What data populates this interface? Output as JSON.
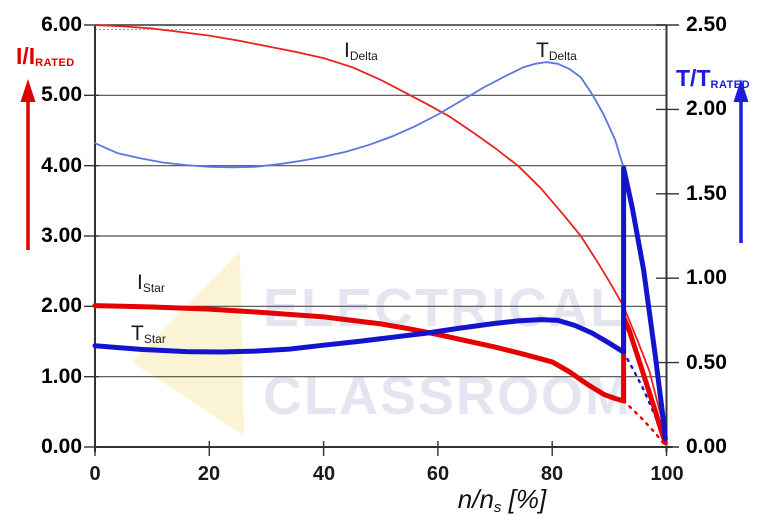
{
  "colors": {
    "red": "#dd0000",
    "blue": "#1c1cdd",
    "thick_red": "#e60000",
    "thin_red": "#e82222",
    "thick_blue": "#1414cf",
    "thin_blue": "#5b76e0",
    "grid": "#4d4d4d",
    "axis_frame": "#333333",
    "dotted_grid": "#999999",
    "watermark_text": "#d6d6ea",
    "watermark_triangle": "#faf4d4",
    "black_text": "#1a1a1a"
  },
  "watermark": {
    "line1": "ELECTRICAL",
    "line2": "CLASSROOM"
  },
  "left_axis": {
    "title_main": "I/I",
    "title_sub": "RATED",
    "ticks": [
      "6.00",
      "5.00",
      "4.00",
      "3.00",
      "2.00",
      "1.00",
      "0.00"
    ]
  },
  "right_axis": {
    "title_main": "T/T",
    "title_sub": "RATED",
    "ticks": [
      "2.50",
      "2.00",
      "1.50",
      "1.00",
      "0.50",
      "0.00"
    ]
  },
  "x_axis": {
    "ticks": [
      "0",
      "20",
      "40",
      "60",
      "80",
      "100"
    ],
    "title_main": "n/n",
    "title_sub": "s",
    "title_suffix": " [%]"
  },
  "curve_labels": {
    "i_delta": {
      "main": "I",
      "sub": "Delta"
    },
    "t_delta": {
      "main": "T",
      "sub": "Delta"
    },
    "i_star": {
      "main": "I",
      "sub": "Star"
    },
    "t_star": {
      "main": "T",
      "sub": "Star"
    }
  },
  "chart_data": {
    "type": "line",
    "title": "",
    "x_axis": {
      "label": "n/n_s [%]",
      "range": [
        0,
        100
      ],
      "ticks": [
        0,
        20,
        40,
        60,
        80,
        100
      ]
    },
    "y_left": {
      "label": "I/I_RATED",
      "range": [
        0,
        6
      ],
      "ticks": [
        6,
        5,
        4,
        3,
        2,
        1,
        0
      ],
      "color": "#dd0000"
    },
    "y_right": {
      "label": "T/T_RATED",
      "range": [
        0,
        2.5
      ],
      "ticks": [
        2.5,
        2.0,
        1.5,
        1.0,
        0.5,
        0.0
      ],
      "color": "#1c1cdd"
    },
    "grid": true,
    "series": [
      {
        "name": "I_Delta",
        "axis": "left",
        "style": "thin",
        "color_key": "thin_red",
        "points": [
          [
            0,
            6.0
          ],
          [
            5,
            5.98
          ],
          [
            10,
            5.95
          ],
          [
            15,
            5.9
          ],
          [
            20,
            5.85
          ],
          [
            25,
            5.78
          ],
          [
            30,
            5.7
          ],
          [
            35,
            5.62
          ],
          [
            40,
            5.53
          ],
          [
            45,
            5.4
          ],
          [
            50,
            5.22
          ],
          [
            54,
            5.05
          ],
          [
            58,
            4.88
          ],
          [
            62,
            4.7
          ],
          [
            66,
            4.48
          ],
          [
            70,
            4.25
          ],
          [
            74,
            4.0
          ],
          [
            78,
            3.68
          ],
          [
            82,
            3.3
          ],
          [
            85,
            3.0
          ],
          [
            88,
            2.62
          ],
          [
            90,
            2.35
          ],
          [
            92.5,
            2.0
          ],
          [
            95,
            1.5
          ],
          [
            97,
            1.08
          ],
          [
            99,
            0.45
          ],
          [
            100,
            0.05
          ]
        ]
      },
      {
        "name": "T_Delta",
        "axis": "right",
        "style": "thin",
        "color_key": "thin_blue",
        "points": [
          [
            0,
            1.8
          ],
          [
            4,
            1.74
          ],
          [
            8,
            1.71
          ],
          [
            12,
            1.685
          ],
          [
            16,
            1.67
          ],
          [
            20,
            1.66
          ],
          [
            24,
            1.657
          ],
          [
            28,
            1.66
          ],
          [
            32,
            1.675
          ],
          [
            36,
            1.695
          ],
          [
            40,
            1.72
          ],
          [
            44,
            1.75
          ],
          [
            48,
            1.79
          ],
          [
            52,
            1.84
          ],
          [
            56,
            1.9
          ],
          [
            60,
            1.97
          ],
          [
            64,
            2.05
          ],
          [
            68,
            2.13
          ],
          [
            72,
            2.2
          ],
          [
            75,
            2.25
          ],
          [
            77,
            2.27
          ],
          [
            79,
            2.28
          ],
          [
            81,
            2.27
          ],
          [
            83,
            2.24
          ],
          [
            85,
            2.19
          ],
          [
            87,
            2.09
          ],
          [
            89,
            1.97
          ],
          [
            91,
            1.82
          ],
          [
            92.5,
            1.655
          ],
          [
            94,
            1.42
          ],
          [
            96,
            1.05
          ],
          [
            98,
            0.55
          ],
          [
            99.5,
            0.12
          ],
          [
            100,
            0.01
          ]
        ]
      },
      {
        "name": "I_Star",
        "axis": "left",
        "style": "thick",
        "color_key": "thick_red",
        "points": [
          [
            0,
            2.01
          ],
          [
            10,
            1.99
          ],
          [
            20,
            1.96
          ],
          [
            30,
            1.91
          ],
          [
            40,
            1.85
          ],
          [
            50,
            1.75
          ],
          [
            55,
            1.68
          ],
          [
            60,
            1.6
          ],
          [
            65,
            1.51
          ],
          [
            70,
            1.42
          ],
          [
            75,
            1.32
          ],
          [
            80,
            1.21
          ],
          [
            83,
            1.07
          ],
          [
            86,
            0.9
          ],
          [
            89,
            0.75
          ],
          [
            91,
            0.69
          ],
          [
            92.5,
            0.655
          ],
          [
            92.5,
            1.85
          ],
          [
            93.5,
            1.65
          ],
          [
            95,
            1.28
          ],
          [
            96.5,
            0.9
          ],
          [
            98,
            0.52
          ],
          [
            99,
            0.25
          ],
          [
            99.8,
            0.06
          ]
        ]
      },
      {
        "name": "T_Star",
        "axis": "right",
        "style": "thick",
        "color_key": "thick_blue",
        "points": [
          [
            0,
            0.6
          ],
          [
            8,
            0.578
          ],
          [
            16,
            0.565
          ],
          [
            22,
            0.563
          ],
          [
            28,
            0.568
          ],
          [
            34,
            0.58
          ],
          [
            40,
            0.603
          ],
          [
            46,
            0.625
          ],
          [
            52,
            0.65
          ],
          [
            58,
            0.675
          ],
          [
            64,
            0.705
          ],
          [
            70,
            0.732
          ],
          [
            74,
            0.747
          ],
          [
            78,
            0.755
          ],
          [
            81,
            0.75
          ],
          [
            84,
            0.72
          ],
          [
            87,
            0.675
          ],
          [
            90,
            0.615
          ],
          [
            92.5,
            0.562
          ],
          [
            92.5,
            1.653
          ],
          [
            94,
            1.42
          ],
          [
            96,
            1.05
          ],
          [
            98,
            0.55
          ],
          [
            99.3,
            0.2
          ],
          [
            99.8,
            0.05
          ]
        ]
      },
      {
        "name": "I_Star_extrapolated",
        "axis": "left",
        "style": "dashed",
        "color_key": "thick_red",
        "points": [
          [
            92.5,
            0.655
          ],
          [
            94,
            0.54
          ],
          [
            96,
            0.38
          ],
          [
            98,
            0.2
          ],
          [
            99.8,
            0.02
          ]
        ]
      },
      {
        "name": "T_Star_extrapolated",
        "axis": "right",
        "style": "dashed",
        "color_key": "thick_blue",
        "points": [
          [
            92.5,
            0.562
          ],
          [
            94,
            0.47
          ],
          [
            96,
            0.34
          ],
          [
            98,
            0.185
          ],
          [
            99.8,
            0.02
          ]
        ]
      }
    ],
    "annotations": {
      "star_delta_switch_speed_percent": 92.5,
      "legend_position": "inline-curve-labels"
    }
  }
}
